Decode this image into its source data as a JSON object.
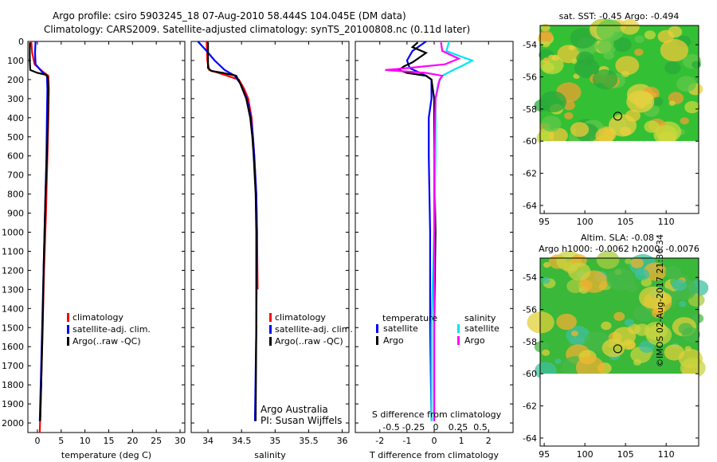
{
  "header": {
    "line1": "Argo profile: csiro 5903245_18 07-Aug-2010 58.444S 104.045E (DM data)",
    "line2": "Climatology: CARS2009. Satellite-adjusted climatology: synTS_20100808.nc (0.11d later)"
  },
  "credits": {
    "org": "Argo Australia",
    "pi": "PI: Susan Wijffels",
    "stamp": "©IMOS 02-Aug-2017 21:36:34"
  },
  "colors": {
    "climatology": "#ff0000",
    "satellite": "#0000ff",
    "argo": "#000000",
    "sal_satellite": "#00e5ee",
    "sal_argo": "#ff00ff",
    "map_land": "#ffffff",
    "map_green": "#2db82d"
  },
  "chart_data": [
    {
      "type": "line",
      "id": "temperature",
      "xlabel": "temperature (deg C)",
      "ylabel": "",
      "xlim": [
        -2,
        31
      ],
      "ylim": [
        2050,
        0
      ],
      "xticks": [
        0,
        5,
        10,
        15,
        20,
        25,
        30
      ],
      "yticks": [
        0,
        100,
        200,
        300,
        400,
        500,
        600,
        700,
        800,
        900,
        1000,
        1100,
        1200,
        1300,
        1400,
        1500,
        1600,
        1700,
        1800,
        1900,
        2000
      ],
      "legend": [
        "climatology",
        "satellite-adj. clim.",
        "Argo(..raw -QC)"
      ],
      "series": [
        {
          "name": "climatology",
          "color": "#ff0000",
          "depth": [
            0,
            60,
            120,
            160,
            180,
            250,
            400,
            600,
            900,
            1200,
            1500,
            1800,
            2050
          ],
          "values": [
            -1.3,
            -1.1,
            -0.6,
            1.2,
            2.3,
            2.4,
            2.3,
            2.1,
            1.8,
            1.4,
            1.1,
            0.8,
            0.5
          ]
        },
        {
          "name": "satellite-adj. clim.",
          "color": "#0000ff",
          "depth": [
            0,
            60,
            120,
            160,
            180,
            250,
            400,
            600,
            900,
            1200,
            1500,
            1800,
            1990
          ],
          "values": [
            -0.4,
            -0.5,
            -0.4,
            1.0,
            2.0,
            2.1,
            2.0,
            1.9,
            1.6,
            1.3,
            1.0,
            0.7,
            0.5
          ]
        },
        {
          "name": "Argo(..raw -QC)",
          "color": "#000000",
          "depth": [
            5,
            50,
            100,
            150,
            165,
            175,
            190,
            250,
            400,
            600,
            800,
            1000,
            1200,
            1500,
            1800,
            1990
          ],
          "values": [
            -1.6,
            -1.6,
            -1.6,
            -1.5,
            0.0,
            1.8,
            2.2,
            2.3,
            2.2,
            2.0,
            1.7,
            1.5,
            1.3,
            1.1,
            0.8,
            0.6
          ]
        }
      ]
    },
    {
      "type": "line",
      "id": "salinity",
      "xlabel": "salinity",
      "ylabel": "",
      "xlim": [
        33.75,
        36.1
      ],
      "ylim": [
        2050,
        0
      ],
      "xticks": [
        34,
        34.5,
        35,
        35.5,
        36
      ],
      "legend": [
        "climatology",
        "satellite-adj. clim.",
        "Argo(..raw -QC)"
      ],
      "series": [
        {
          "name": "climatology",
          "color": "#ff0000",
          "depth": [
            0,
            100,
            150,
            170,
            200,
            250,
            300,
            400,
            500,
            600,
            800,
            1000,
            1300
          ],
          "values": [
            33.98,
            33.99,
            34.02,
            34.2,
            34.46,
            34.54,
            34.6,
            34.65,
            34.67,
            34.69,
            34.72,
            34.73,
            34.74
          ]
        },
        {
          "name": "satellite-adj. clim.",
          "color": "#0000ff",
          "depth": [
            0,
            50,
            100,
            150,
            180,
            220,
            300,
            400,
            500,
            600,
            800,
            1000,
            1500,
            1990
          ],
          "values": [
            33.85,
            33.98,
            34.1,
            34.25,
            34.4,
            34.48,
            34.58,
            34.64,
            34.67,
            34.69,
            34.72,
            34.73,
            34.72,
            34.7
          ]
        },
        {
          "name": "Argo(..raw -QC)",
          "color": "#000000",
          "depth": [
            5,
            80,
            140,
            155,
            165,
            180,
            220,
            300,
            400,
            500,
            600,
            800,
            1000,
            1500,
            1990
          ],
          "values": [
            34.0,
            34.0,
            34.0,
            34.05,
            34.22,
            34.42,
            34.48,
            34.57,
            34.63,
            34.66,
            34.68,
            34.71,
            34.72,
            34.72,
            34.71
          ]
        }
      ]
    },
    {
      "type": "line",
      "id": "difference",
      "title": "S difference from climatology",
      "xlabel": "T difference from climatology",
      "ylabel": "",
      "xlim": [
        -2.9,
        2.9
      ],
      "ylim": [
        2050,
        0
      ],
      "xticks": [
        -2,
        -1,
        0,
        1,
        2
      ],
      "top_xticks": [
        -0.5,
        -0.25,
        0,
        0.25,
        0.5
      ],
      "top_xtick_labels": [
        "-0.5",
        "-0.25",
        "0",
        "0.25",
        "0.5"
      ],
      "legend_groups": [
        {
          "title": "temperature",
          "items": [
            "satellite",
            "Argo"
          ]
        },
        {
          "title": "salinity",
          "items": [
            "satellite",
            "Argo"
          ]
        }
      ],
      "series": [
        {
          "name": "temperature satellite",
          "color": "#0000ff",
          "depth": [
            0,
            50,
            100,
            140,
            160,
            180,
            200,
            300,
            400,
            600,
            1000,
            1500,
            1990
          ],
          "values": [
            -0.3,
            -0.8,
            -1.0,
            -0.9,
            -0.6,
            -0.3,
            -0.1,
            -0.1,
            -0.2,
            -0.2,
            -0.15,
            -0.15,
            -0.1
          ]
        },
        {
          "name": "temperature Argo",
          "color": "#000000",
          "depth": [
            5,
            30,
            60,
            90,
            110,
            130,
            150,
            165,
            180,
            200,
            300,
            600,
            1000,
            1500,
            1990
          ],
          "values": [
            -0.6,
            -0.8,
            -0.3,
            -0.6,
            -0.8,
            -1.1,
            -1.3,
            -1.0,
            -0.3,
            -0.1,
            0.0,
            0.0,
            0.05,
            0.0,
            0.0
          ]
        },
        {
          "name": "salinity satellite",
          "color": "#00e5ee",
          "depth": [
            0,
            50,
            80,
            100,
            130,
            150,
            180,
            220,
            300,
            600,
            1000,
            1500,
            1990
          ],
          "values": [
            0.55,
            0.45,
            1.0,
            1.4,
            1.0,
            0.7,
            0.3,
            0.15,
            0.05,
            0.05,
            0.0,
            -0.1,
            -0.1
          ]
        },
        {
          "name": "salinity Argo",
          "color": "#ff00ff",
          "depth": [
            5,
            50,
            90,
            120,
            140,
            150,
            165,
            180,
            200,
            300,
            600,
            1000,
            1500,
            1990
          ],
          "values": [
            0.25,
            0.3,
            0.9,
            0.4,
            -1.0,
            -1.8,
            -0.3,
            0.3,
            0.2,
            0.05,
            0.0,
            0.0,
            0.0,
            0.0
          ]
        }
      ]
    },
    {
      "type": "heatmap",
      "id": "sst-map",
      "title": "sat. SST: -0.45 Argo: -0.494",
      "xlim": [
        94.5,
        114
      ],
      "ylim": [
        -64.5,
        -52.8
      ],
      "xticks": [
        95,
        100,
        105,
        110
      ],
      "yticks": [
        -54,
        -56,
        -58,
        -60,
        -62,
        -64
      ],
      "marker": {
        "lon": 104.045,
        "lat": -58.444
      },
      "data_extent_lat": [
        -60,
        -52.8
      ]
    },
    {
      "type": "heatmap",
      "id": "sla-map",
      "title": "Altim. SLA: -0.08",
      "subtitle": "Argo h1000: -0.0062 h2000: -0.0076",
      "xlim": [
        94.5,
        114
      ],
      "ylim": [
        -64.5,
        -52.8
      ],
      "xticks": [
        95,
        100,
        105,
        110
      ],
      "yticks": [
        -54,
        -56,
        -58,
        -60,
        -62,
        -64
      ],
      "marker": {
        "lon": 104.045,
        "lat": -58.444
      },
      "data_extent_lat": [
        -60,
        -52.8
      ]
    }
  ]
}
